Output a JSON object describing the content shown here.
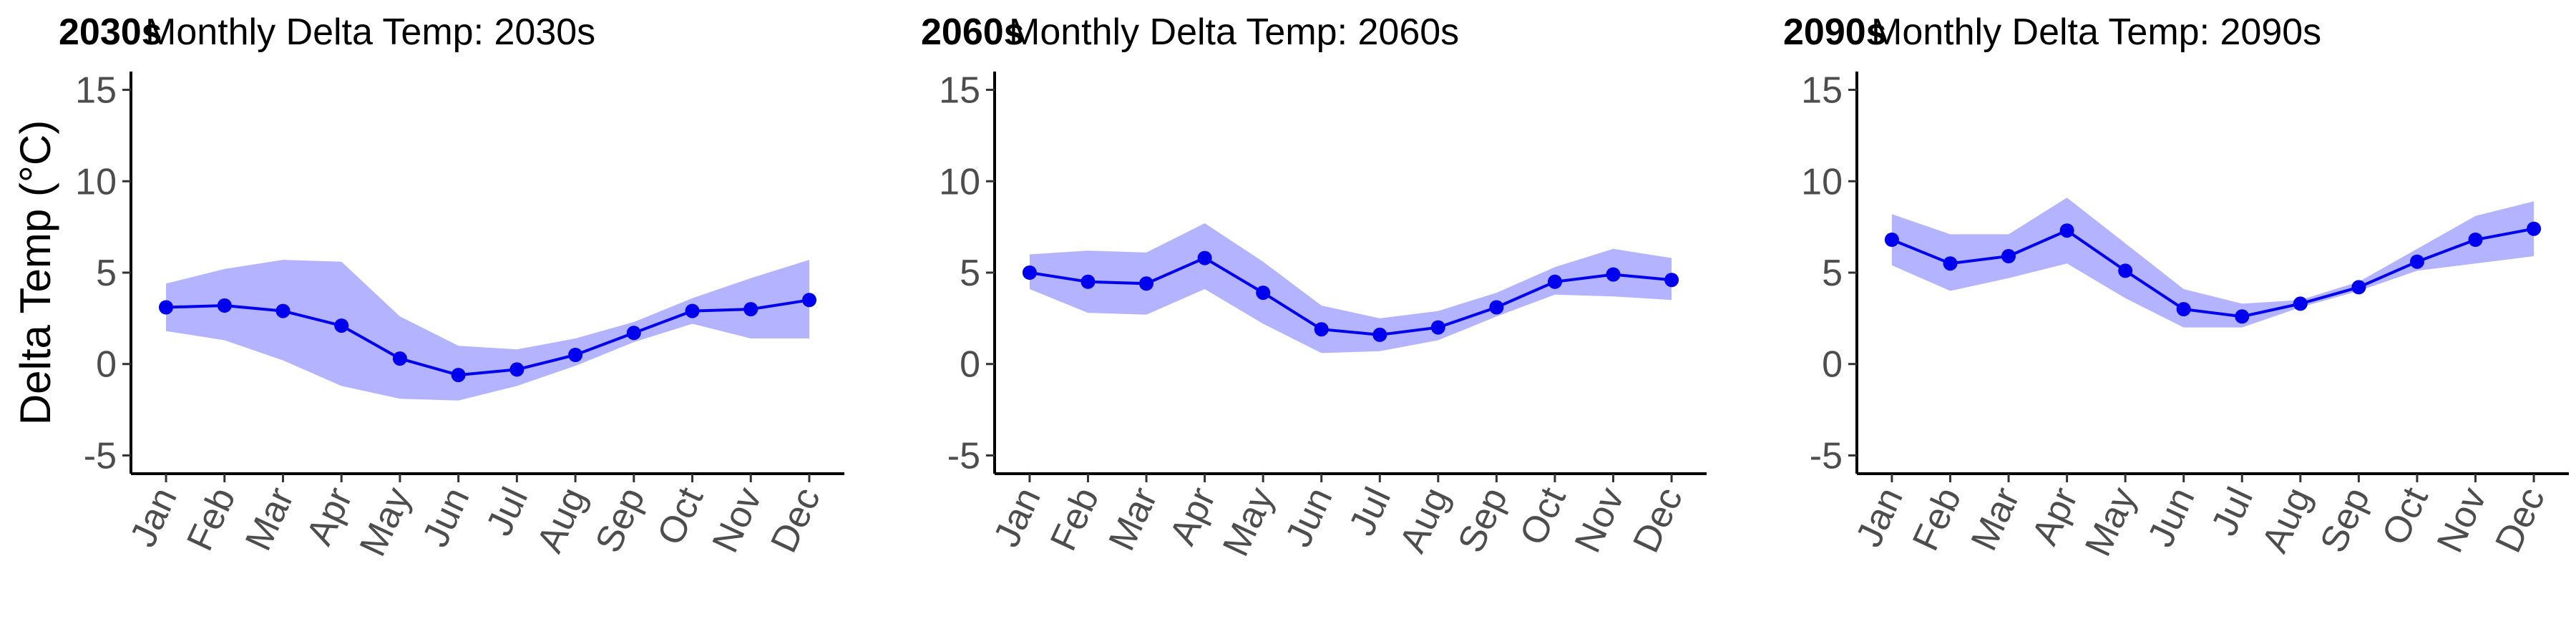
{
  "chart_data": [
    {
      "type": "line",
      "tag": "2030s",
      "title": "Monthly Delta Temp: 2030s",
      "xlabel": "",
      "ylabel": "Delta Temp (°C)",
      "ylim": [
        -6,
        16
      ],
      "yticks": [
        -5,
        0,
        5,
        10,
        15
      ],
      "categories": [
        "Jan",
        "Feb",
        "Mar",
        "Apr",
        "May",
        "Jun",
        "Jul",
        "Aug",
        "Sep",
        "Oct",
        "Nov",
        "Dec"
      ],
      "values": [
        3.1,
        3.2,
        2.9,
        2.1,
        0.3,
        -0.6,
        -0.3,
        0.5,
        1.7,
        2.9,
        3.0,
        3.5
      ],
      "band_upper": [
        4.4,
        5.2,
        5.7,
        5.6,
        2.6,
        1.0,
        0.8,
        1.4,
        2.3,
        3.6,
        4.7,
        5.7
      ],
      "band_lower": [
        1.8,
        1.3,
        0.2,
        -1.2,
        -1.9,
        -2.0,
        -1.2,
        -0.1,
        1.2,
        2.2,
        1.4,
        1.4
      ],
      "line_color": "#0000ee",
      "band_color": "#b3b3ff",
      "grid": false
    },
    {
      "type": "line",
      "tag": "2060s",
      "title": "Monthly Delta Temp: 2060s",
      "xlabel": "",
      "ylabel": "",
      "ylim": [
        -6,
        16
      ],
      "yticks": [
        -5,
        0,
        5,
        10,
        15
      ],
      "categories": [
        "Jan",
        "Feb",
        "Mar",
        "Apr",
        "May",
        "Jun",
        "Jul",
        "Aug",
        "Sep",
        "Oct",
        "Nov",
        "Dec"
      ],
      "values": [
        5.0,
        4.5,
        4.4,
        5.8,
        3.9,
        1.9,
        1.6,
        2.0,
        3.1,
        4.5,
        4.9,
        4.6
      ],
      "band_upper": [
        6.0,
        6.2,
        6.1,
        7.7,
        5.6,
        3.2,
        2.5,
        2.9,
        3.9,
        5.3,
        6.3,
        5.8
      ],
      "band_lower": [
        4.1,
        2.8,
        2.7,
        4.1,
        2.2,
        0.6,
        0.7,
        1.3,
        2.6,
        3.8,
        3.7,
        3.5
      ],
      "line_color": "#0000ee",
      "band_color": "#b3b3ff",
      "grid": false
    },
    {
      "type": "line",
      "tag": "2090s",
      "title": "Monthly Delta Temp: 2090s",
      "xlabel": "",
      "ylabel": "",
      "ylim": [
        -6,
        16
      ],
      "yticks": [
        -5,
        0,
        5,
        10,
        15
      ],
      "categories": [
        "Jan",
        "Feb",
        "Mar",
        "Apr",
        "May",
        "Jun",
        "Jul",
        "Aug",
        "Sep",
        "Oct",
        "Nov",
        "Dec"
      ],
      "values": [
        6.8,
        5.5,
        5.9,
        7.3,
        5.1,
        3.0,
        2.6,
        3.3,
        4.2,
        5.6,
        6.8,
        7.4
      ],
      "band_upper": [
        8.2,
        7.1,
        7.1,
        9.1,
        6.6,
        4.1,
        3.3,
        3.5,
        4.5,
        6.3,
        8.1,
        8.9
      ],
      "band_lower": [
        5.4,
        4.0,
        4.7,
        5.5,
        3.6,
        2.0,
        2.0,
        3.1,
        4.0,
        5.1,
        5.5,
        5.9
      ],
      "line_color": "#0000ee",
      "band_color": "#b3b3ff",
      "grid": false
    }
  ]
}
